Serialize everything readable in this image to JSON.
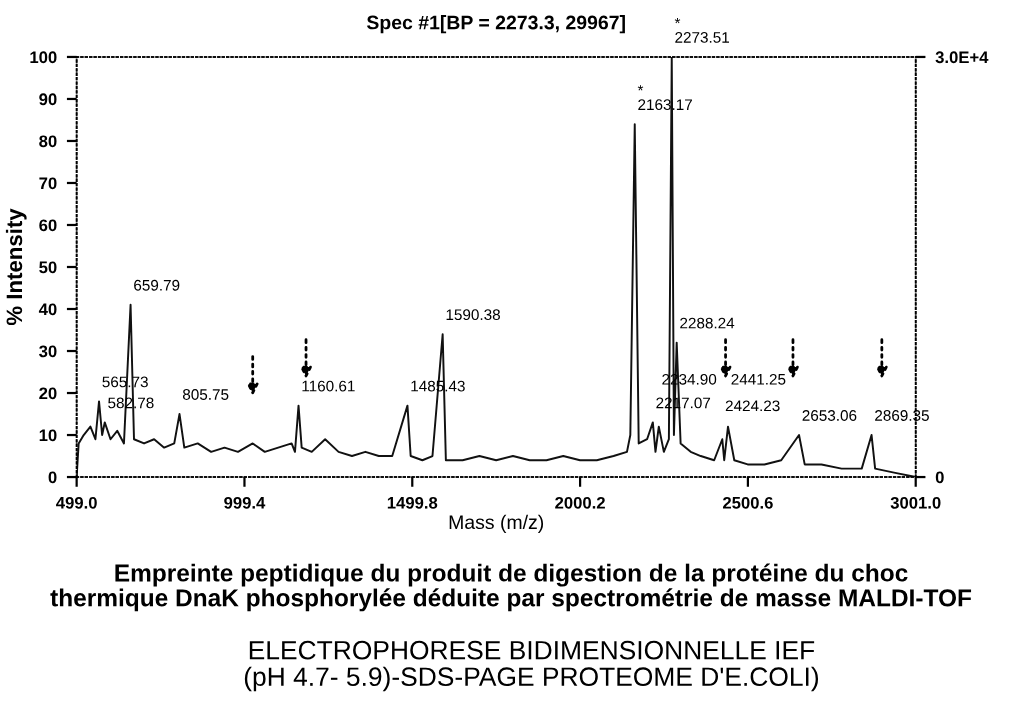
{
  "chart_data": {
    "type": "line",
    "title": "Spec #1[BP = 2273.3, 29967]",
    "xlabel": "Mass (m/z)",
    "ylabel": "% Intensity",
    "x": [
      499,
      505,
      520,
      540,
      555,
      565.73,
      575,
      582.78,
      600,
      620,
      640,
      659.79,
      670,
      700,
      730,
      760,
      790,
      805.75,
      820,
      860,
      900,
      940,
      980,
      1024,
      1060,
      1100,
      1140,
      1150,
      1160.61,
      1170,
      1200,
      1240,
      1280,
      1320,
      1360,
      1400,
      1440,
      1485.43,
      1495,
      1530,
      1560,
      1590.38,
      1600,
      1650,
      1700,
      1750,
      1800,
      1850,
      1900,
      1950,
      2000,
      2050,
      2100,
      2140,
      2150,
      2163.17,
      2175,
      2200,
      2217.07,
      2225,
      2234.9,
      2250,
      2265,
      2273.51,
      2280,
      2288.24,
      2300,
      2330,
      2360,
      2400,
      2424.23,
      2430,
      2441.25,
      2460,
      2500,
      2550,
      2600,
      2653.06,
      2670,
      2720,
      2780,
      2840,
      2869.35,
      2880,
      2940,
      3001
    ],
    "series": [
      {
        "color": "#111111",
        "values": [
          0,
          8,
          10,
          12,
          9,
          18,
          10,
          13,
          9,
          11,
          8,
          41,
          9,
          8,
          9,
          7,
          8,
          15,
          7,
          8,
          6,
          7,
          6,
          8,
          6,
          7,
          8,
          6,
          17,
          7,
          6,
          9,
          6,
          5,
          6,
          5,
          5,
          17,
          5,
          4,
          5,
          34,
          4,
          4,
          5,
          4,
          5,
          4,
          4,
          5,
          4,
          4,
          5,
          6,
          10,
          84,
          8,
          9,
          13,
          6,
          12,
          6,
          9,
          100,
          10,
          32,
          8,
          6,
          5,
          4,
          9,
          4,
          12,
          4,
          3,
          3,
          4,
          10,
          3,
          3,
          2,
          2,
          10,
          2,
          1,
          0
        ]
      }
    ],
    "xlim": [
      499.0,
      3001.0
    ],
    "ylim": [
      0,
      100
    ],
    "xticks": [
      {
        "value": 499.0,
        "label": "499.0"
      },
      {
        "value": 999.4,
        "label": "999.4"
      },
      {
        "value": 1499.8,
        "label": "1499.8"
      },
      {
        "value": 2000.2,
        "label": "2000.2"
      },
      {
        "value": 2500.6,
        "label": "2500.6"
      },
      {
        "value": 3001.0,
        "label": "3001.0"
      }
    ],
    "yticks": [
      0,
      10,
      20,
      30,
      40,
      50,
      60,
      70,
      80,
      90,
      100
    ],
    "y2lim": [
      0,
      30000
    ],
    "y2ticks": [
      {
        "value": 0,
        "label": "0"
      },
      {
        "value": 30000,
        "label": "3.0E+4"
      }
    ],
    "line_style": "solid",
    "marker": "none",
    "grid": false,
    "legend": false,
    "annotations": [
      {
        "text": "565.73",
        "x": 565.73,
        "y": 18
      },
      {
        "text": "582.78",
        "x": 582.78,
        "y": 13
      },
      {
        "text": "659.79",
        "x": 659.79,
        "y": 41
      },
      {
        "text": "805.75",
        "x": 805.75,
        "y": 15
      },
      {
        "text": "1160.61",
        "x": 1160.61,
        "y": 17
      },
      {
        "text": "1485.43",
        "x": 1485.43,
        "y": 17
      },
      {
        "text": "1590.38",
        "x": 1590.38,
        "y": 34
      },
      {
        "text": "*\n2163.17",
        "x": 2163.17,
        "y": 84
      },
      {
        "text": "*\n2273.51",
        "x": 2273.51,
        "y": 100
      },
      {
        "text": "2217.07",
        "x": 2217.07,
        "y": 13
      },
      {
        "text": "2234.90",
        "x": 2234.9,
        "y": 12
      },
      {
        "text": "2288.24",
        "x": 2288.24,
        "y": 32
      },
      {
        "text": "2424.23",
        "x": 2424.23,
        "y": 9
      },
      {
        "text": "2441.25",
        "x": 2441.25,
        "y": 12
      },
      {
        "text": "2653.06",
        "x": 2653.06,
        "y": 10
      },
      {
        "text": "2869.35",
        "x": 2869.35,
        "y": 10
      },
      "Empreinte peptidique du produit de digestion de la protéine du choc\nthermique DnaK phosphorylée déduite par spectrométrie de masse MALDI-TOF",
      "ELECTROPHORESE BIDIMENSIONNELLE IEF\n(pH 4.7- 5.9)-SDS-PAGE PROTEOME D'E.COLI)"
    ]
  }
}
